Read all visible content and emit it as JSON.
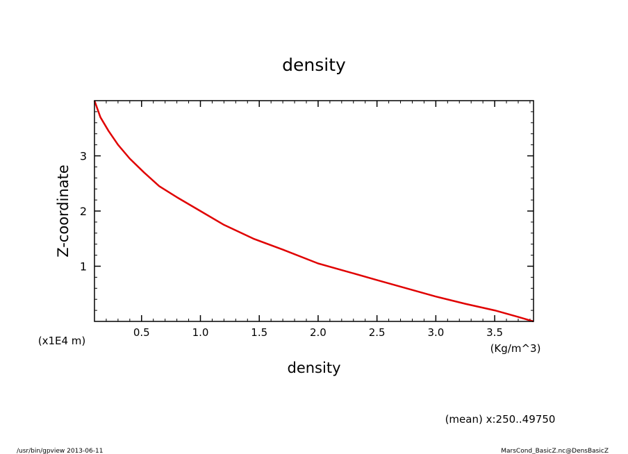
{
  "chart_data": {
    "type": "line",
    "title": "density",
    "xlabel": "density",
    "x_unit": "(Kg/m^3)",
    "ylabel": "Z-coordinate",
    "y_unit": "(x1E4 m)",
    "xlim": [
      0.1,
      3.83
    ],
    "ylim": [
      0,
      4.0
    ],
    "x_ticks": [
      0.5,
      1.0,
      1.5,
      2.0,
      2.5,
      3.0,
      3.5
    ],
    "x_tick_labels": [
      "0.5",
      "1.0",
      "1.5",
      "2.0",
      "2.5",
      "3.0",
      "3.5"
    ],
    "y_ticks": [
      1,
      2,
      3
    ],
    "y_tick_labels": [
      "1",
      "2",
      "3"
    ],
    "grid": false,
    "series": [
      {
        "color": "#e00000",
        "x": [
          0.1,
          0.15,
          0.22,
          0.3,
          0.4,
          0.52,
          0.65,
          0.8,
          1.0,
          1.2,
          1.45,
          1.7,
          2.0,
          2.25,
          2.5,
          2.75,
          3.0,
          3.25,
          3.5,
          3.7,
          3.83
        ],
        "y": [
          4.0,
          3.7,
          3.45,
          3.2,
          2.95,
          2.7,
          2.45,
          2.25,
          2.0,
          1.75,
          1.5,
          1.3,
          1.05,
          0.9,
          0.75,
          0.6,
          0.45,
          0.32,
          0.2,
          0.08,
          0.0
        ]
      }
    ]
  },
  "footer": {
    "mean_note": "(mean) x:250..49750",
    "left": "/usr/bin/gpview   2013-06-11",
    "right": "MarsCond_BasicZ.nc@DensBasicZ"
  }
}
